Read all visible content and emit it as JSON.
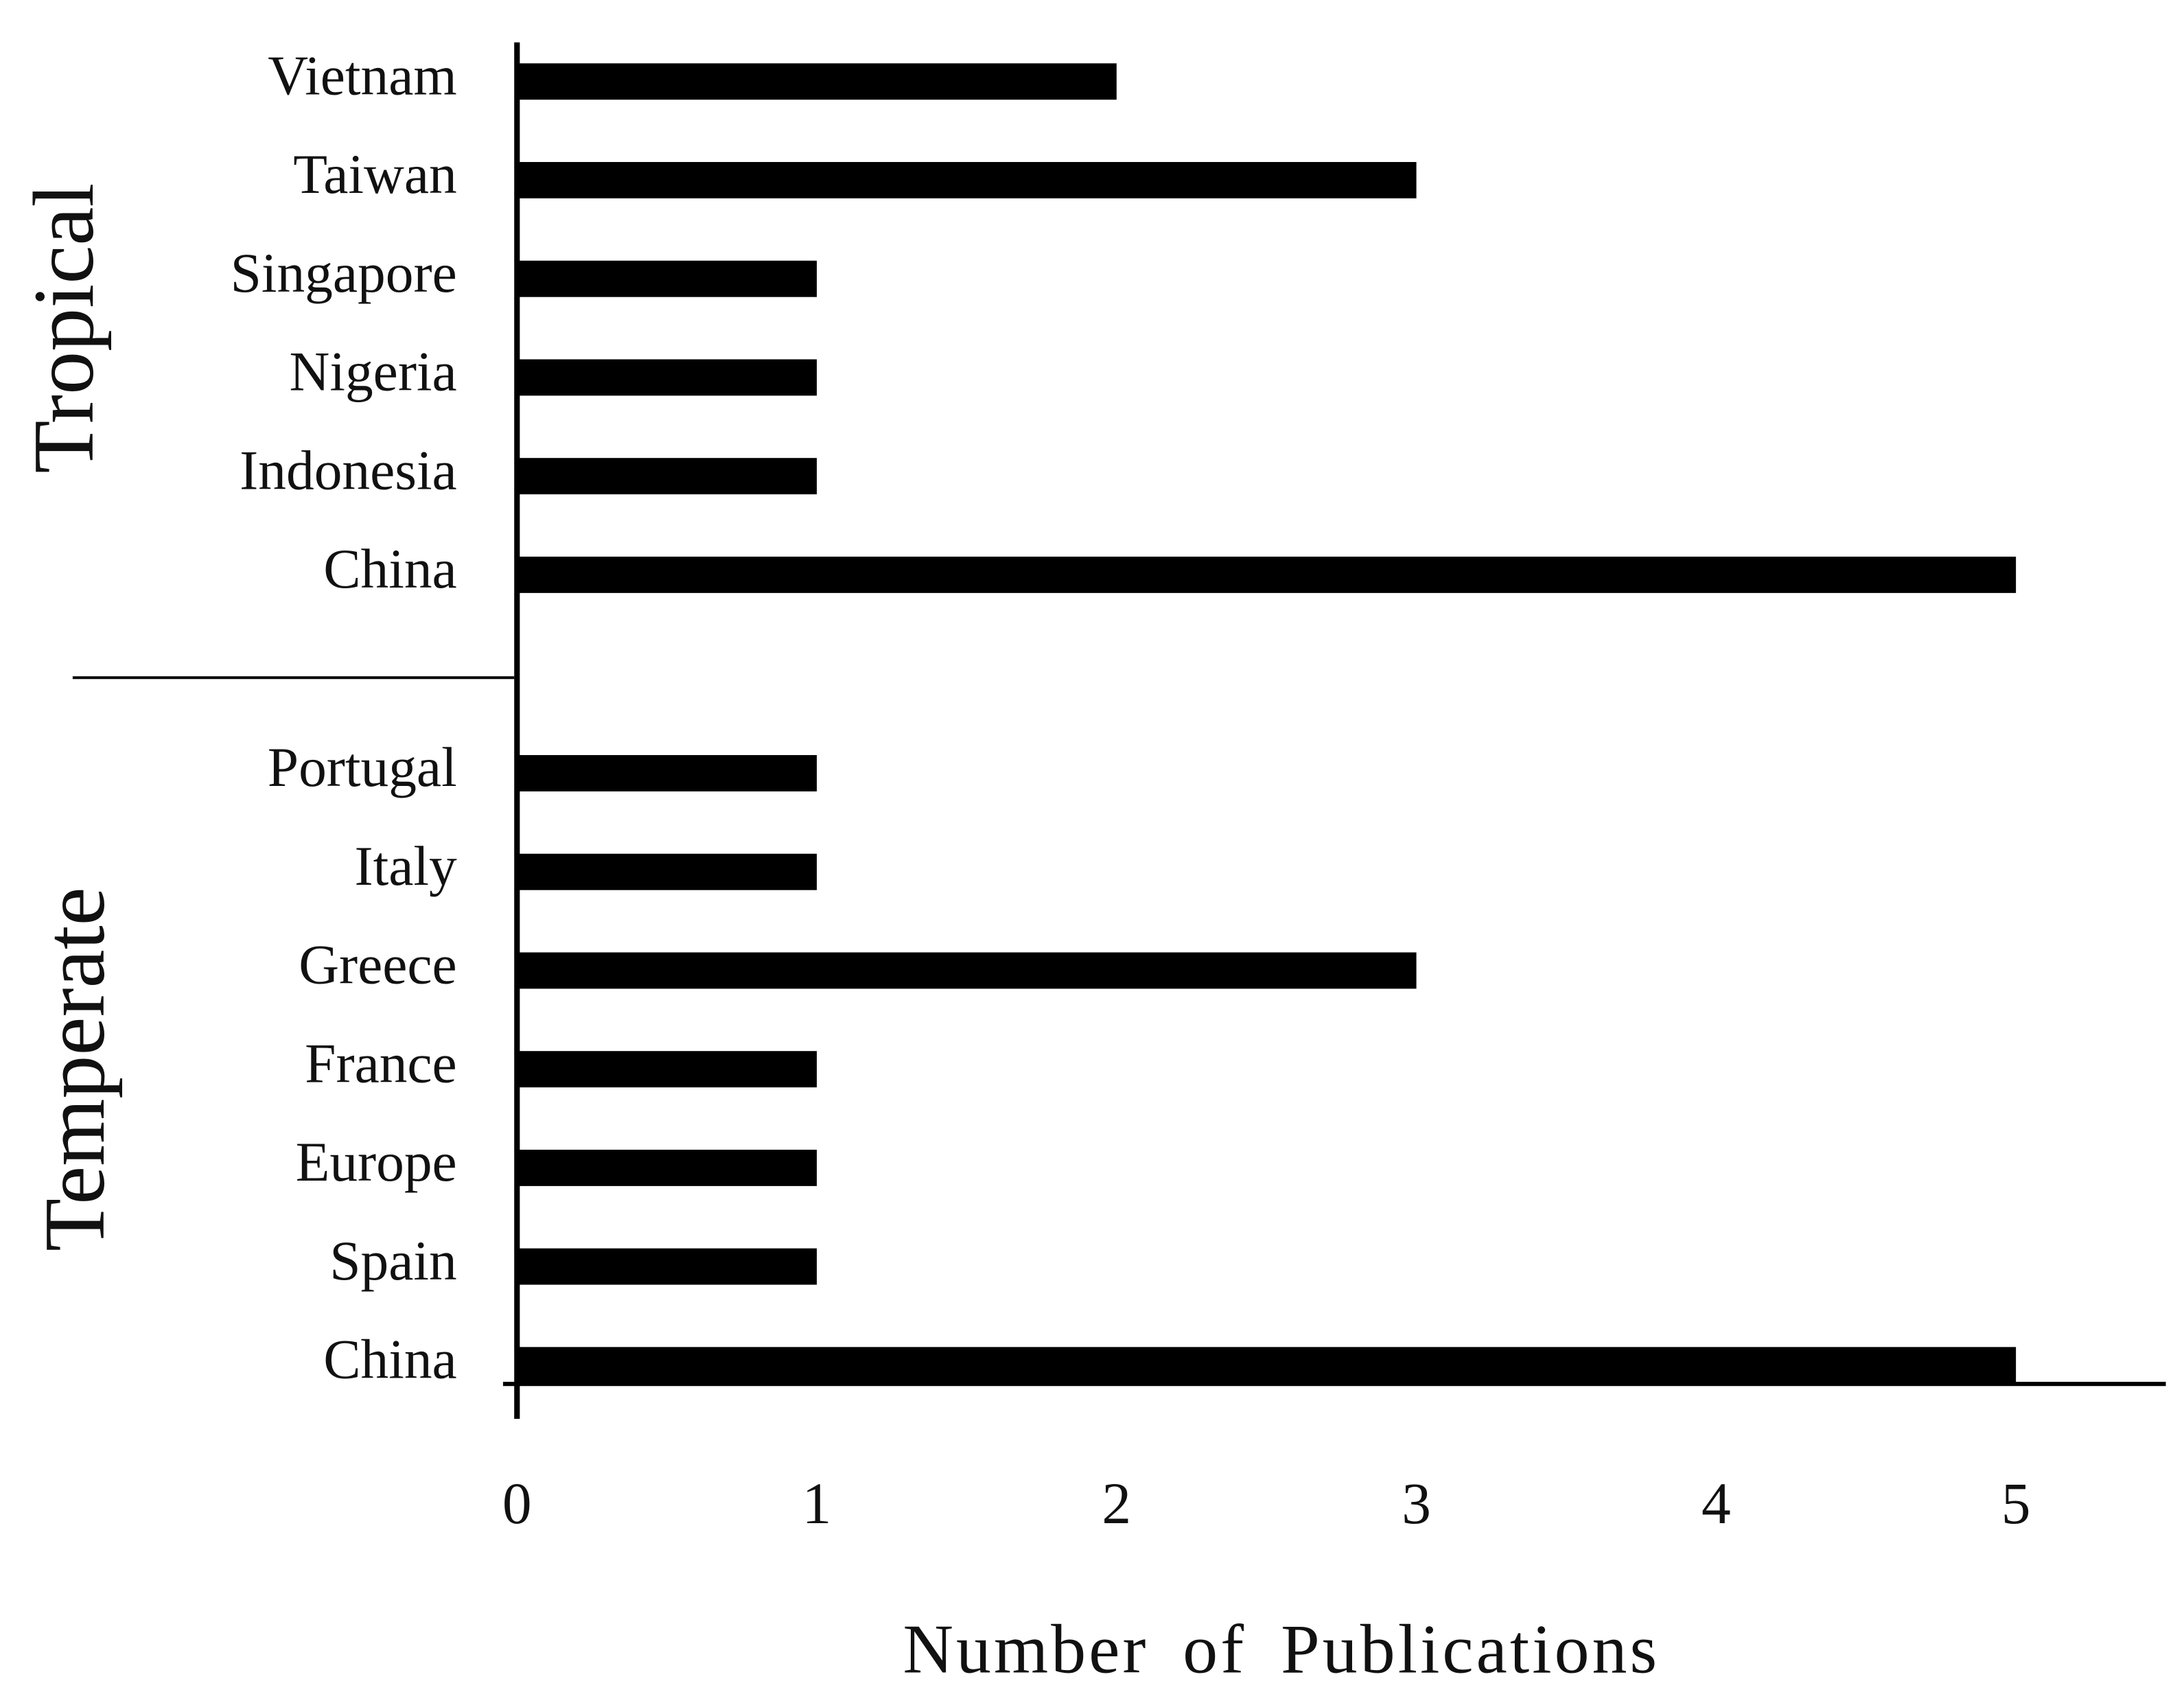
{
  "chart_data": {
    "type": "bar",
    "orientation": "horizontal",
    "x_label": "Number of Publications",
    "groups": [
      {
        "label": "Tropical",
        "categories": [
          "Vietnam",
          "Taiwan",
          "Singapore",
          "Nigeria",
          "Indonesia",
          "China"
        ],
        "values": [
          2,
          3,
          1,
          1,
          1,
          5
        ]
      },
      {
        "label": "Temperate",
        "categories": [
          "Portugal",
          "Italy",
          "Greece",
          "France",
          "Europe",
          "Spain",
          "China"
        ],
        "values": [
          1,
          1,
          3,
          1,
          1,
          1,
          5
        ]
      }
    ],
    "color": "#000000",
    "xlim": [
      0,
      5.5
    ],
    "xticks": [
      0,
      1,
      2,
      3,
      4,
      5
    ],
    "grid": false
  }
}
